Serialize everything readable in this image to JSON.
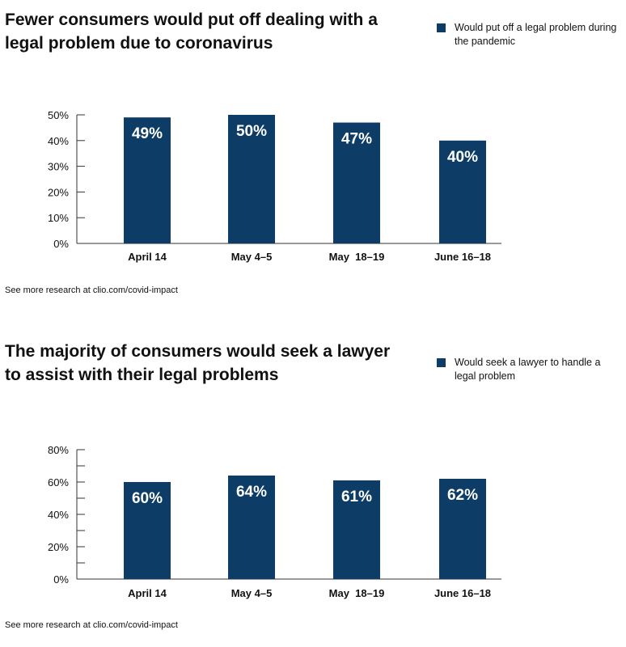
{
  "colors": {
    "bar": "#0d3d66",
    "text": "#111111"
  },
  "chart_data": [
    {
      "type": "bar",
      "title": "Fewer consumers would put off dealing with a legal problem due to coronavirus",
      "categories": [
        "April 14",
        "May 4–5",
        "May  18–19",
        "June 16–18"
      ],
      "series": [
        {
          "name": "Would put off a legal problem during the pandemic",
          "values": [
            49,
            50,
            47,
            40
          ],
          "data_labels": [
            "49%",
            "50%",
            "47%",
            "40%"
          ]
        }
      ],
      "ylim": [
        0,
        50
      ],
      "yticks": [
        0,
        10,
        20,
        30,
        40,
        50
      ],
      "ytick_labels": [
        "0%",
        "10%",
        "20%",
        "30%",
        "40%",
        "50%"
      ],
      "minor_ticks": false,
      "xlabel": "",
      "ylabel": "",
      "grid": false,
      "legend_position": "top-right",
      "footnote": "See more research at clio.com/covid-impact"
    },
    {
      "type": "bar",
      "title": "The majority of consumers would seek a lawyer to assist with their legal problems",
      "categories": [
        "April 14",
        "May 4–5",
        "May  18–19",
        "June 16–18"
      ],
      "series": [
        {
          "name": "Would seek a lawyer to handle a legal problem",
          "values": [
            60,
            64,
            61,
            62
          ],
          "data_labels": [
            "60%",
            "64%",
            "61%",
            "62%"
          ]
        }
      ],
      "ylim": [
        0,
        80
      ],
      "yticks": [
        0,
        20,
        40,
        60,
        80
      ],
      "ytick_labels": [
        "0%",
        "20%",
        "40%",
        "60%",
        "80%"
      ],
      "minor_ticks": true,
      "xlabel": "",
      "ylabel": "",
      "grid": false,
      "legend_position": "top-right",
      "footnote": "See more research at clio.com/covid-impact"
    }
  ]
}
